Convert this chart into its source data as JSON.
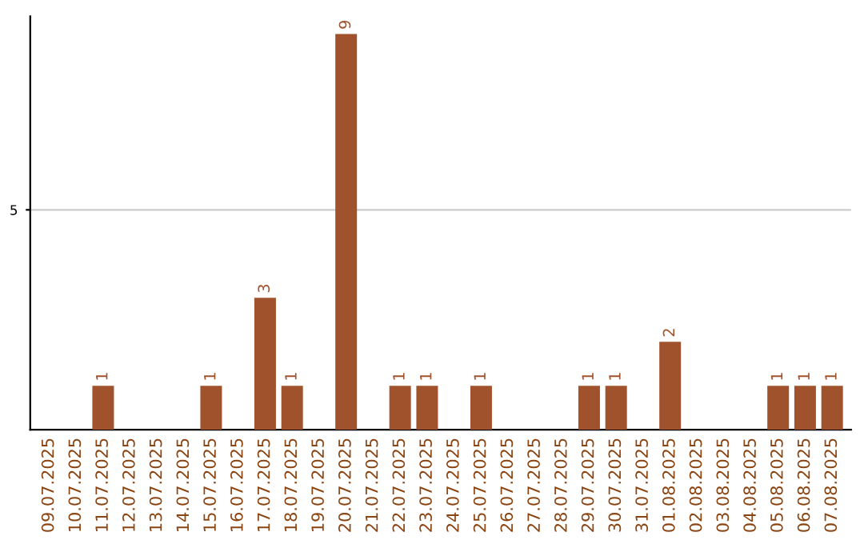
{
  "chart_data": {
    "type": "bar",
    "categories": [
      "09.07.2025",
      "10.07.2025",
      "11.07.2025",
      "12.07.2025",
      "13.07.2025",
      "14.07.2025",
      "15.07.2025",
      "16.07.2025",
      "17.07.2025",
      "18.07.2025",
      "19.07.2025",
      "20.07.2025",
      "21.07.2025",
      "22.07.2025",
      "23.07.2025",
      "24.07.2025",
      "25.07.2025",
      "26.07.2025",
      "27.07.2025",
      "28.07.2025",
      "29.07.2025",
      "30.07.2025",
      "31.07.2025",
      "01.08.2025",
      "02.08.2025",
      "03.08.2025",
      "04.08.2025",
      "05.08.2025",
      "06.08.2025",
      "07.08.2025"
    ],
    "values": [
      0,
      0,
      1,
      0,
      0,
      0,
      1,
      0,
      3,
      1,
      0,
      9,
      0,
      1,
      1,
      0,
      1,
      0,
      0,
      0,
      1,
      1,
      0,
      2,
      0,
      0,
      0,
      1,
      1,
      1
    ],
    "color": "#a0522d",
    "value_labels": [
      null,
      null,
      "1",
      null,
      null,
      null,
      "1",
      null,
      "3",
      "1",
      null,
      "9",
      null,
      "1",
      "1",
      null,
      "1",
      null,
      null,
      null,
      "1",
      "1",
      null,
      "2",
      null,
      null,
      null,
      "1",
      "1",
      "1"
    ],
    "ylim": [
      0,
      9.4
    ],
    "yticks": [
      5
    ],
    "grid": "y"
  }
}
